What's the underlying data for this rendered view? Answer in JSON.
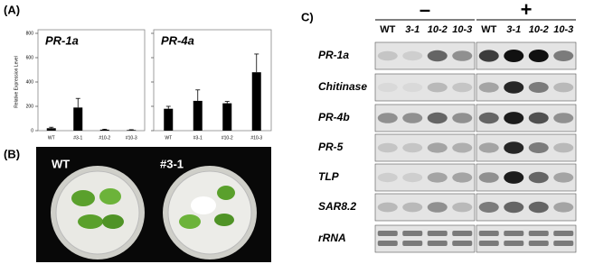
{
  "panels": {
    "a": "(A)",
    "b": "(B)",
    "c": "C)"
  },
  "chart_data": [
    {
      "type": "bar",
      "title": "PR-1a",
      "y_label": "Relative Expression Level",
      "categories": [
        "WT",
        "#3-1",
        "#10-2",
        "#10-3"
      ],
      "values": [
        20,
        190,
        8,
        5
      ],
      "errors": [
        8,
        75,
        4,
        3
      ],
      "color": "#000000",
      "ylim": [
        0,
        800
      ],
      "yticks": [
        0,
        200,
        400,
        600,
        800
      ]
    },
    {
      "type": "bar",
      "title": "PR-4a",
      "categories": [
        "WT",
        "#3-1",
        "#10-2",
        "#10-3"
      ],
      "values": [
        180,
        245,
        225,
        480
      ],
      "errors": [
        20,
        90,
        15,
        150
      ],
      "color": "#000000",
      "ylim": [
        0,
        800
      ],
      "yticks": [
        0,
        200,
        400,
        600,
        800
      ]
    }
  ],
  "photo": {
    "labels": [
      "WT",
      "#3-1"
    ]
  },
  "blot": {
    "groups": [
      "–",
      "+"
    ],
    "lanes": [
      "WT",
      "3-1",
      "10-2",
      "10-3",
      "WT",
      "3-1",
      "10-2",
      "10-3"
    ],
    "rows": [
      "PR-1a",
      "Chitinase",
      "PR-4b",
      "PR-5",
      "TLP",
      "SAR8.2",
      "rRNA"
    ]
  }
}
